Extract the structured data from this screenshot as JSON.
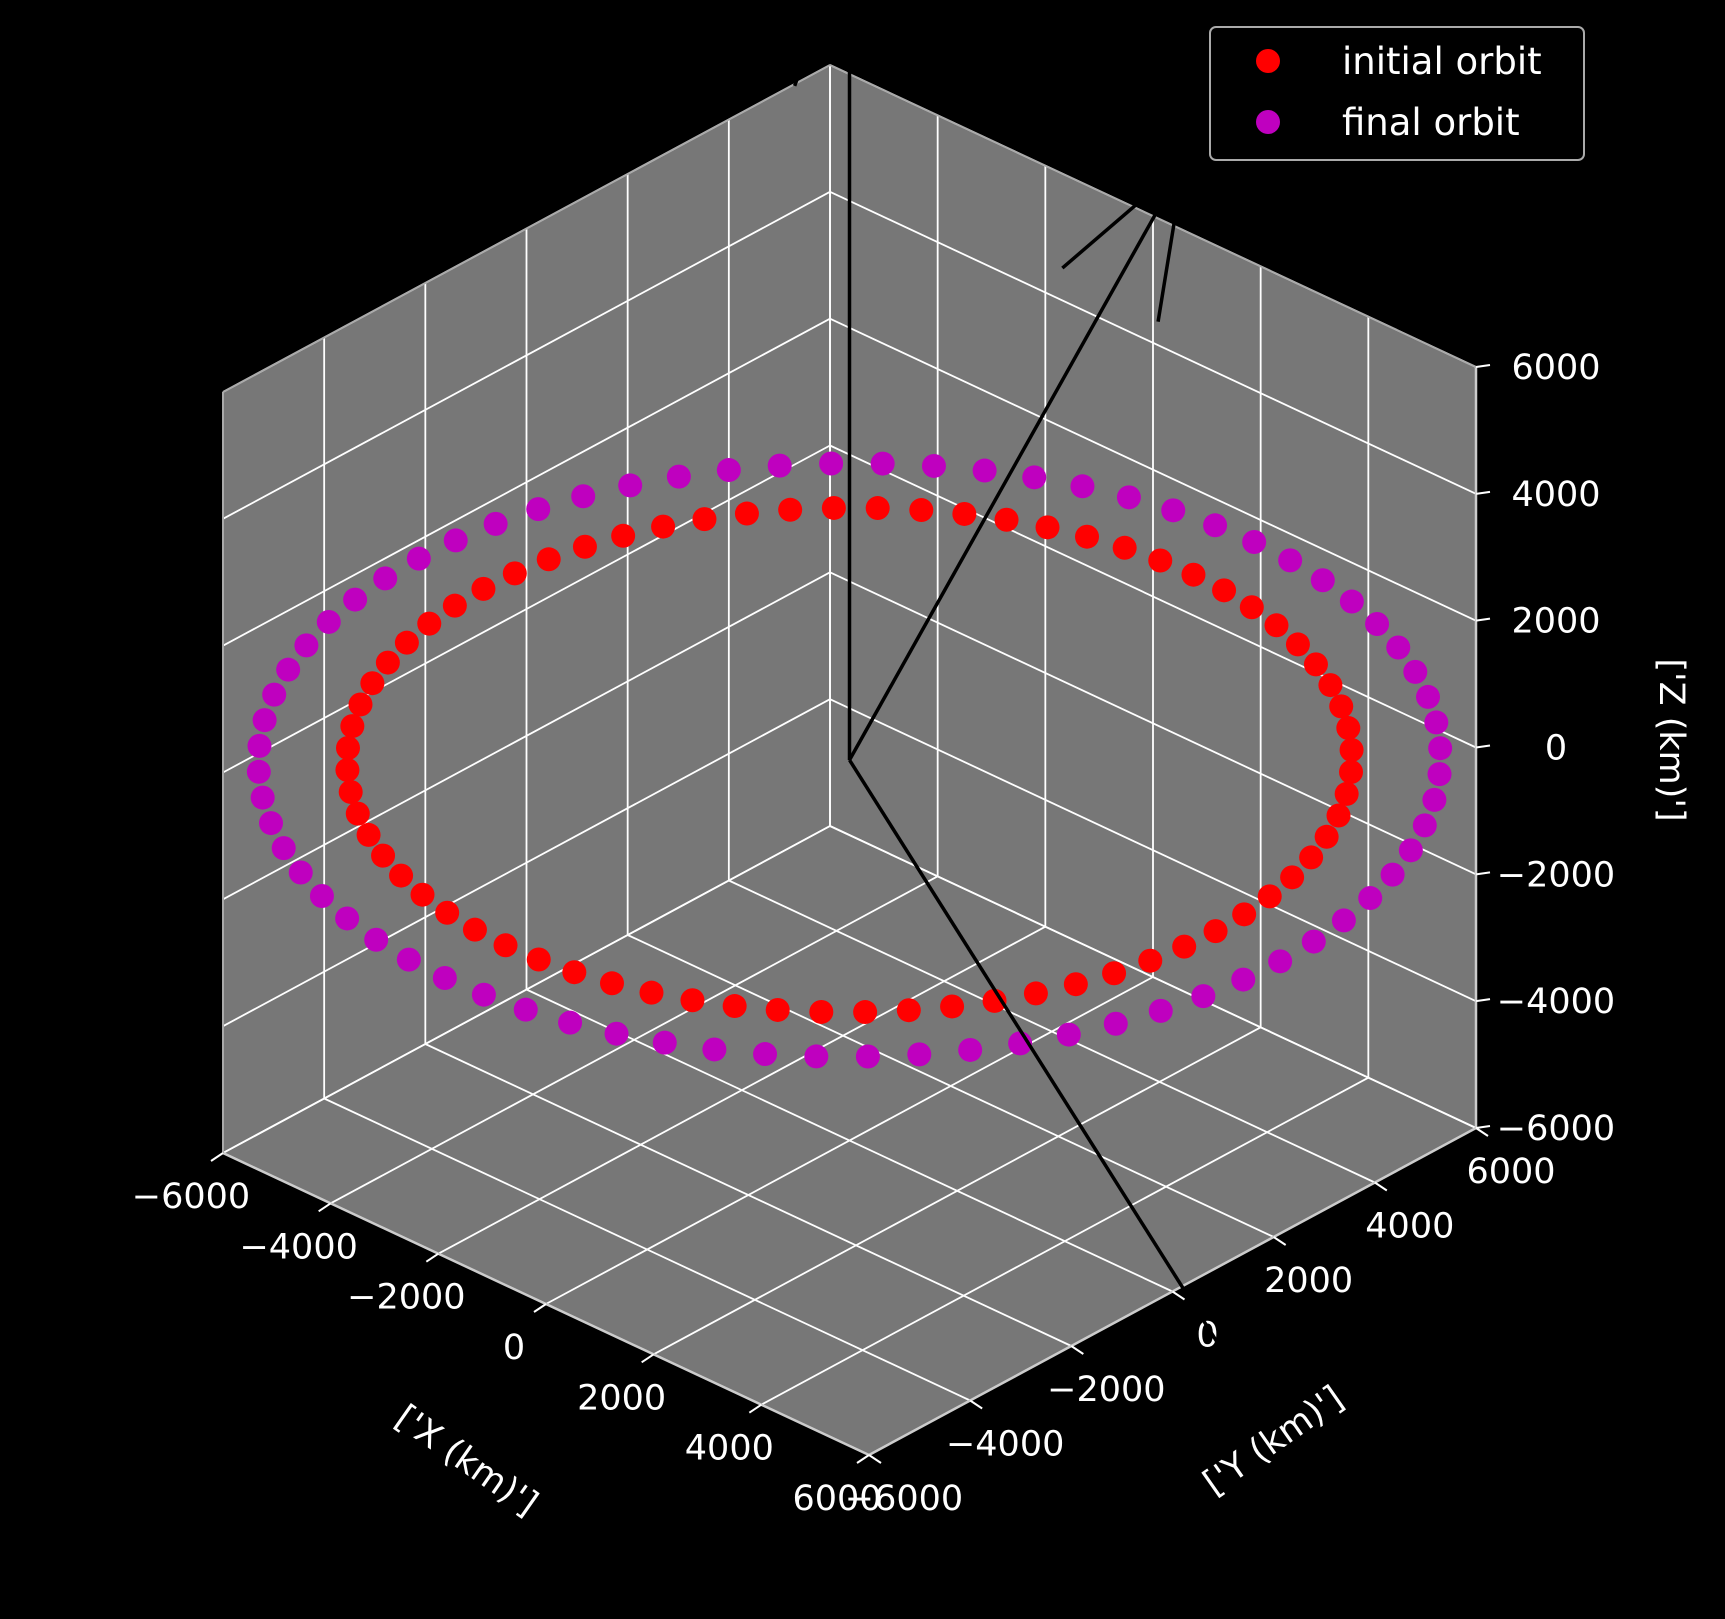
{
  "chart_data": {
    "type": "scatter",
    "projection": "3d",
    "background": "#000000",
    "pane_color": "#777777",
    "grid": true,
    "legend_placement": "top-right",
    "xlabel": "['X (km)']",
    "ylabel": "['Y (km)']",
    "zlabel": "['Z (km)']",
    "xlim": [
      -6000,
      6000
    ],
    "ylim": [
      -6000,
      6000
    ],
    "zlim": [
      -6000,
      6000
    ],
    "xticks": [
      "−6000",
      "−4000",
      "−2000",
      "0",
      "2000",
      "4000",
      "6000"
    ],
    "yticks": [
      "−6000",
      "−4000",
      "−2000",
      "0",
      "2000",
      "4000",
      "6000"
    ],
    "zticks": [
      "−6000",
      "−4000",
      "−2000",
      "0",
      "2000",
      "4000",
      "6000"
    ],
    "series": [
      {
        "name": "initial orbit",
        "color": "#ff0000",
        "marker": "circle",
        "radius_km": 6800,
        "z_km": 0,
        "points": 72
      },
      {
        "name": "final orbit",
        "color": "#bf00bf",
        "marker": "circle",
        "radius_km": 8000,
        "z_km": 0,
        "points": 72
      }
    ],
    "vectors": [
      {
        "color": "#000000",
        "from": [
          0,
          0,
          0
        ],
        "to": [
          0,
          0,
          13000
        ]
      },
      {
        "color": "#000000",
        "from": [
          0,
          0,
          0
        ],
        "to": [
          -3000,
          9800,
          4000
        ]
      },
      {
        "color": "#000000",
        "from": [
          0,
          0,
          0
        ],
        "to": [
          9500,
          0,
          -9000
        ]
      }
    ]
  }
}
